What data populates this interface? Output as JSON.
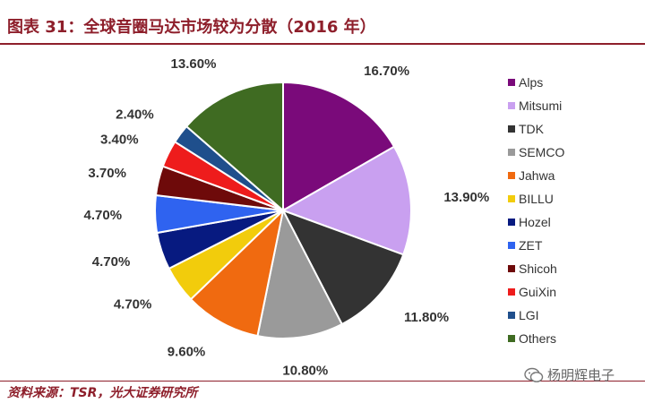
{
  "title": "图表 31：全球音圈马达市场较为分散（2016 年）",
  "source": "资料来源：TSR，光大证券研究所",
  "watermark": "杨明辉电子",
  "chart_data": {
    "type": "pie",
    "title": "图表 31：全球音圈马达市场较为分散（2016 年）",
    "legend_position": "right",
    "slices": [
      {
        "name": "Alps",
        "value": 16.7,
        "label": "16.70%",
        "color": "#7a0a7a"
      },
      {
        "name": "Mitsumi",
        "value": 13.9,
        "label": "13.90%",
        "color": "#c9a0f0"
      },
      {
        "name": "TDK",
        "value": 11.8,
        "label": "11.80%",
        "color": "#333333"
      },
      {
        "name": "SEMCO",
        "value": 10.8,
        "label": "10.80%",
        "color": "#9a9a9a"
      },
      {
        "name": "Jahwa",
        "value": 9.6,
        "label": "9.60%",
        "color": "#f06a10"
      },
      {
        "name": "BILLU",
        "value": 4.7,
        "label": "4.70%",
        "color": "#f2cc0c"
      },
      {
        "name": "Hozel",
        "value": 4.7,
        "label": "4.70%",
        "color": "#071a80"
      },
      {
        "name": "ZET",
        "value": 4.7,
        "label": "4.70%",
        "color": "#2f63f0"
      },
      {
        "name": "Shicoh",
        "value": 3.7,
        "label": "3.70%",
        "color": "#6e0a0a"
      },
      {
        "name": "GuiXin",
        "value": 3.4,
        "label": "3.40%",
        "color": "#ee1c1c"
      },
      {
        "name": "LGI",
        "value": 2.4,
        "label": "2.40%",
        "color": "#1f4f8c"
      },
      {
        "name": "Others",
        "value": 13.6,
        "label": "13.60%",
        "color": "#3f6b22"
      }
    ]
  }
}
